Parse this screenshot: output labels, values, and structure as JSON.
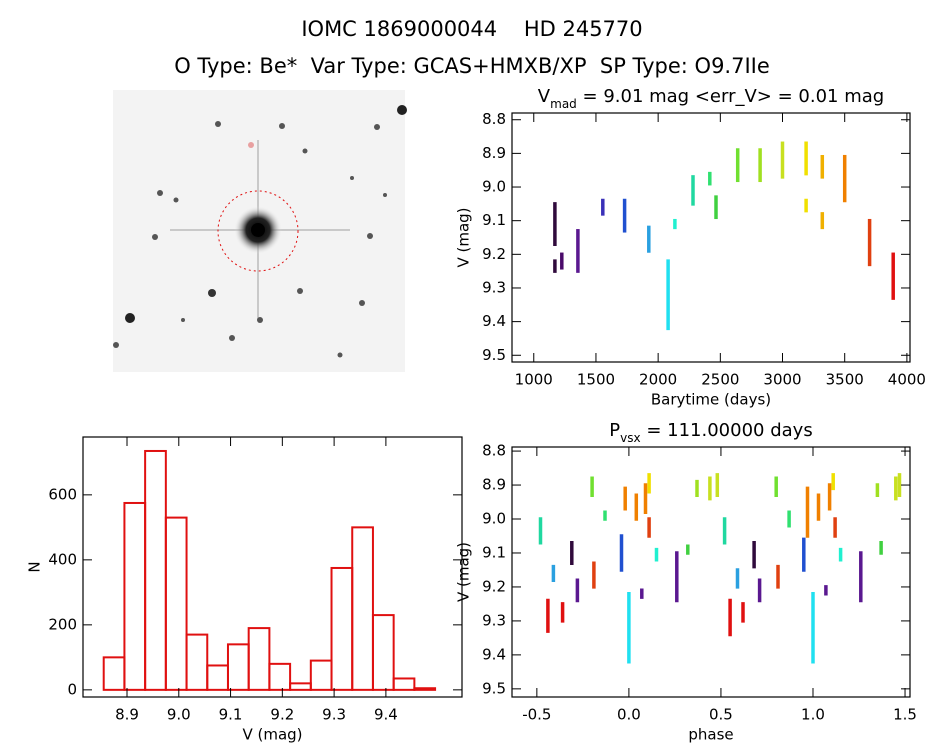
{
  "header": {
    "title": "IOMC 1869000044    HD 245770",
    "subtitle": "O Type: Be*  Var Type: GCAS+HMXB/XP  SP Type: O9.7IIe"
  },
  "chart_data": [
    {
      "type": "scatter",
      "title": "V",
      "title_sub": "mad",
      "title_rest": " = 9.01 mag <err_V> = 0.01 mag",
      "xlabel": "Barytime (days)",
      "ylabel": "V (mag)",
      "xlim": [
        825,
        4025
      ],
      "ylim": [
        9.52,
        8.78
      ],
      "xticks": [
        1000,
        1500,
        2000,
        2500,
        3000,
        3500,
        4000
      ],
      "yticks": [
        8.8,
        8.9,
        {
          "value": 9,
          "label": "9.0"
        },
        9.1,
        9.2,
        9.3,
        9.4,
        9.5
      ],
      "series": [
        {
          "color": "#300a3c",
          "x": [
            1170,
            1170,
            null,
            1170,
            1170
          ],
          "values": [
            9.05,
            9.17,
            null,
            9.22,
            9.25
          ]
        },
        {
          "color": "#4a0a6a",
          "x": [
            1225,
            1225
          ],
          "values": [
            9.2,
            9.24
          ]
        },
        {
          "color": "#5a1890",
          "x": [
            1355,
            1355
          ],
          "values": [
            9.13,
            9.25
          ]
        },
        {
          "color": "#3a30b8",
          "x": [
            1555,
            1555
          ],
          "values": [
            9.04,
            9.08
          ]
        },
        {
          "color": "#2050d0",
          "x": [
            1730,
            1730
          ],
          "values": [
            9.04,
            9.13
          ]
        },
        {
          "color": "#2aa0e0",
          "x": [
            1925,
            1925
          ],
          "values": [
            9.12,
            9.19
          ]
        },
        {
          "color": "#20e0f0",
          "x": [
            2080,
            2080
          ],
          "values": [
            9.22,
            9.42
          ]
        },
        {
          "color": "#20f0d0",
          "x": [
            2135,
            2135
          ],
          "values": [
            9.1,
            9.12
          ]
        },
        {
          "color": "#20d8a0",
          "x": [
            2280,
            2280
          ],
          "values": [
            8.97,
            9.05
          ]
        },
        {
          "color": "#30e070",
          "x": [
            2415,
            2415
          ],
          "values": [
            8.96,
            8.99
          ]
        },
        {
          "color": "#40d040",
          "x": [
            2465,
            2465
          ],
          "values": [
            9.03,
            9.09
          ]
        },
        {
          "color": "#70e030",
          "x": [
            2640,
            2640
          ],
          "values": [
            8.89,
            8.98
          ]
        },
        {
          "color": "#a0e020",
          "x": [
            2820,
            2820
          ],
          "values": [
            8.89,
            8.98
          ]
        },
        {
          "color": "#c8e020",
          "x": [
            3000,
            3000
          ],
          "values": [
            8.87,
            8.97
          ]
        },
        {
          "color": "#f0e000",
          "x": [
            3190,
            3190,
            null,
            3190,
            3190
          ],
          "values": [
            8.87,
            8.96,
            null,
            9.04,
            9.07
          ]
        },
        {
          "color": "#f0b000",
          "x": [
            3320,
            3320,
            null,
            3320,
            3320
          ],
          "values": [
            8.91,
            8.97,
            null,
            9.08,
            9.12
          ]
        },
        {
          "color": "#f08000",
          "x": [
            3500,
            3500
          ],
          "values": [
            8.91,
            9.04
          ]
        },
        {
          "color": "#e04010",
          "x": [
            3700,
            3700
          ],
          "values": [
            9.1,
            9.23
          ]
        },
        {
          "color": "#e01010",
          "x": [
            3890,
            3890
          ],
          "values": [
            9.2,
            9.33
          ]
        }
      ]
    },
    {
      "type": "histogram",
      "xlabel": "V (mag)",
      "ylabel": "N",
      "color": "#e01010",
      "xlim": [
        8.815,
        9.547
      ],
      "ylim": [
        -22,
        778
      ],
      "xticks": [
        8.9,
        {
          "value": 9,
          "label": "9.0"
        },
        9.1,
        9.2,
        9.3,
        9.4
      ],
      "yticks": [
        0,
        200,
        400,
        600
      ],
      "bins": [
        8.855,
        8.895,
        8.935,
        8.975,
        9.015,
        9.055,
        9.095,
        9.135,
        9.175,
        9.215,
        9.255,
        9.295,
        9.335,
        9.375,
        9.415,
        9.455,
        9.495
      ],
      "values": [
        100,
        575,
        735,
        530,
        170,
        75,
        140,
        190,
        80,
        20,
        90,
        375,
        500,
        230,
        35,
        5
      ]
    },
    {
      "type": "scatter",
      "title": "P",
      "title_sub": "vsx",
      "title_rest": " = 111.00000 days",
      "xlabel": "phase",
      "ylabel": "V (mag)",
      "xlim": [
        -0.635,
        1.527
      ],
      "ylim": [
        9.524,
        8.788
      ],
      "xticks": [
        -0.5,
        {
          "value": 0,
          "label": "0.0"
        },
        0.5,
        {
          "value": 1,
          "label": "1.0"
        },
        1.5
      ],
      "yticks": [
        8.8,
        8.9,
        {
          "value": 9,
          "label": "9.0"
        },
        9.1,
        9.2,
        9.3,
        9.4,
        9.5
      ],
      "series": [
        {
          "color": "#e01010",
          "x": [
            -0.44,
            -0.44,
            null,
            -0.36,
            -0.36,
            null,
            0.55,
            0.55,
            null,
            0.62,
            0.62
          ],
          "values": [
            9.24,
            9.33,
            null,
            9.25,
            9.3,
            null,
            9.24,
            9.34,
            null,
            9.25,
            9.3
          ]
        },
        {
          "color": "#300a3c",
          "x": [
            -0.31,
            -0.31,
            null,
            0.68,
            0.68
          ],
          "values": [
            9.07,
            9.13,
            null,
            9.07,
            9.14
          ]
        },
        {
          "color": "#5a1890",
          "x": [
            -0.28,
            -0.28,
            null,
            0.71,
            0.71,
            null,
            0.26,
            0.26,
            null,
            1.26,
            1.26,
            null,
            0.07,
            0.07,
            null,
            1.07,
            1.07
          ],
          "values": [
            9.18,
            9.24,
            null,
            9.18,
            9.24,
            null,
            9.1,
            9.24,
            null,
            9.1,
            9.24,
            null,
            9.21,
            9.23,
            null,
            9.2,
            9.22
          ]
        },
        {
          "color": "#2050d0",
          "x": [
            -0.04,
            -0.04,
            null,
            0.95,
            0.95
          ],
          "values": [
            9.05,
            9.15,
            null,
            9.06,
            9.15
          ]
        },
        {
          "color": "#2aa0e0",
          "x": [
            -0.41,
            -0.41,
            null,
            0.59,
            0.59
          ],
          "values": [
            9.14,
            9.18,
            null,
            9.15,
            9.2
          ]
        },
        {
          "color": "#20e0f0",
          "x": [
            0,
            0,
            null,
            1,
            1
          ],
          "values": [
            9.22,
            9.42,
            null,
            9.22,
            9.42
          ]
        },
        {
          "color": "#20f0d0",
          "x": [
            0.15,
            0.15,
            null,
            1.15,
            1.15
          ],
          "values": [
            9.09,
            9.12,
            null,
            9.09,
            9.12
          ]
        },
        {
          "color": "#20d8a0",
          "x": [
            -0.48,
            -0.48,
            null,
            0.52,
            0.52
          ],
          "values": [
            9,
            9.07,
            null,
            9,
            9.07
          ]
        },
        {
          "color": "#30e070",
          "x": [
            -0.13,
            -0.13,
            null,
            0.87,
            0.87
          ],
          "values": [
            8.98,
            9,
            null,
            8.98,
            9.02
          ]
        },
        {
          "color": "#40d040",
          "x": [
            0.32,
            0.32,
            null,
            1.37,
            1.37
          ],
          "values": [
            9.08,
            9.1,
            null,
            9.07,
            9.1
          ]
        },
        {
          "color": "#70e030",
          "x": [
            -0.2,
            -0.2,
            null,
            0.8,
            0.8
          ],
          "values": [
            8.88,
            8.93,
            null,
            8.88,
            8.93
          ]
        },
        {
          "color": "#a0e020",
          "x": [
            0.37,
            0.37,
            null,
            1.35,
            1.35
          ],
          "values": [
            8.89,
            8.93,
            null,
            8.9,
            8.93
          ]
        },
        {
          "color": "#c8e020",
          "x": [
            0.44,
            0.44,
            null,
            1.45,
            1.45,
            null,
            0.48,
            0.48,
            null,
            1.47,
            1.47
          ],
          "values": [
            8.88,
            8.94,
            null,
            8.88,
            8.94,
            null,
            8.87,
            8.93,
            null,
            8.87,
            8.93
          ]
        },
        {
          "color": "#f0e000",
          "x": [
            0.11,
            0.11,
            null,
            1.11,
            1.11
          ],
          "values": [
            8.87,
            8.92,
            null,
            8.87,
            8.91
          ]
        },
        {
          "color": "#f08000",
          "x": [
            -0.02,
            -0.02,
            null,
            0.04,
            0.04,
            null,
            0.09,
            0.09,
            null,
            0.97,
            0.97,
            null,
            1.03,
            1.03,
            null,
            1.09,
            1.09
          ],
          "values": [
            8.91,
            8.97,
            null,
            8.93,
            9,
            null,
            8.9,
            8.98,
            null,
            8.91,
            9.05,
            null,
            8.93,
            9,
            null,
            8.9,
            8.97
          ]
        },
        {
          "color": "#e04010",
          "x": [
            -0.19,
            -0.19,
            null,
            0.81,
            0.81,
            null,
            0.11,
            0.11,
            null,
            1.12,
            1.12
          ],
          "values": [
            9.13,
            9.2,
            null,
            9.14,
            9.2,
            null,
            9,
            9.05,
            null,
            9,
            9.05
          ]
        }
      ]
    }
  ]
}
